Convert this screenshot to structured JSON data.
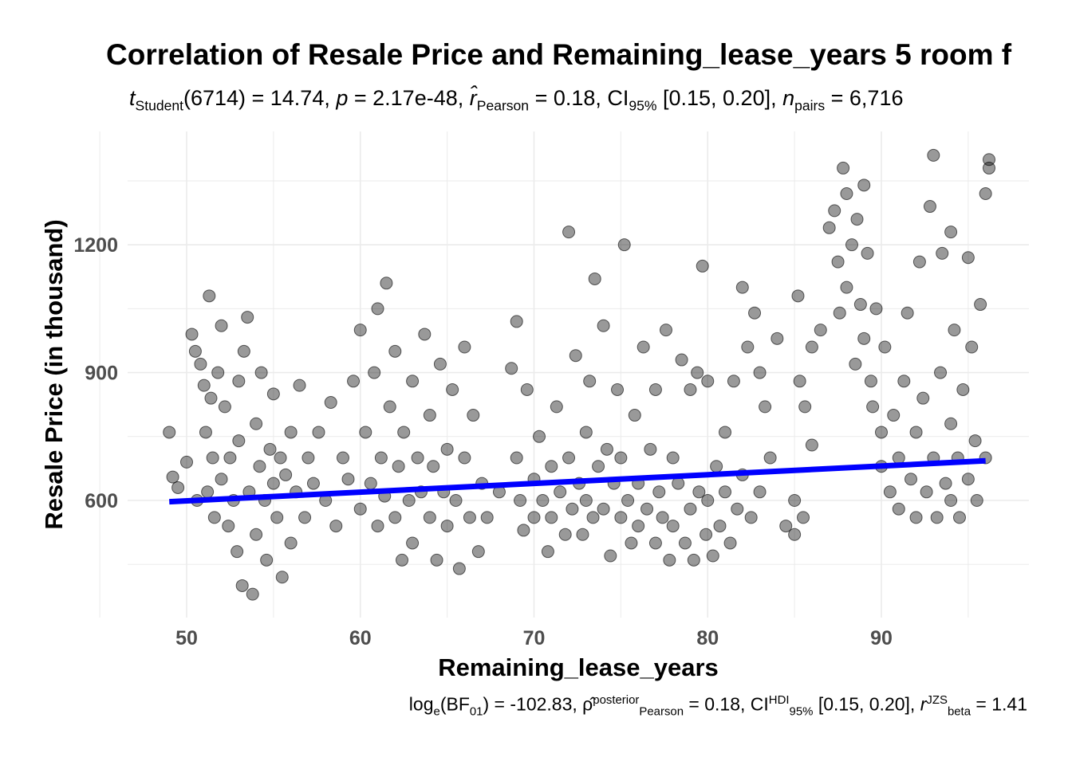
{
  "title": "Correlation of Resale Price and Remaining_lease_years 5 room f",
  "subtitle": {
    "t_label": "t",
    "t_sub": "Student",
    "df": "(6714) = 14.74, ",
    "p_label": "p",
    "p_val": " = 2.17e-48, ",
    "r_label": "r̂",
    "r_sub": "Pearson",
    "r_val": " = 0.18, CI",
    "ci_sub": "95%",
    "ci_val": " [0.15, 0.20], ",
    "n_label": "n",
    "n_sub": "pairs",
    "n_val": " = 6,716"
  },
  "caption": {
    "log": "log",
    "log_sub": "e",
    "bf": "(BF",
    "bf_sub": "01",
    "bf_val": ") = -102.83, ",
    "rho": "ρ̂",
    "rho_sup": "posterior",
    "rho_sub": "Pearson",
    "rho_val": " = 0.18, CI",
    "ci_sup": "HDI",
    "ci_sub": "95%",
    "ci_val": " [0.15, 0.20], ",
    "r": "r",
    "r_sup": "JZS",
    "r_sub": "beta",
    "r_val": " = 1.41"
  },
  "chart_data": {
    "type": "scatter",
    "xlabel": "Remaining_lease_years",
    "ylabel": "Resale Price (in thousand)",
    "xlim": [
      47.5,
      97
    ],
    "ylim": [
      350,
      1420
    ],
    "xticks": [
      50,
      60,
      70,
      80,
      90
    ],
    "yticks": [
      600,
      900,
      1200
    ],
    "grid": true,
    "point_color": "#000000",
    "line_color": "#0000ff",
    "regression": {
      "x": [
        49,
        96
      ],
      "y": [
        597,
        693
      ]
    },
    "points": [
      [
        49,
        760
      ],
      [
        49.2,
        655
      ],
      [
        49.5,
        630
      ],
      [
        50,
        690
      ],
      [
        50.3,
        990
      ],
      [
        50.5,
        950
      ],
      [
        50.6,
        600
      ],
      [
        50.8,
        920
      ],
      [
        51,
        870
      ],
      [
        51.1,
        760
      ],
      [
        51.2,
        620
      ],
      [
        51.3,
        1080
      ],
      [
        51.4,
        840
      ],
      [
        51.5,
        700
      ],
      [
        51.6,
        560
      ],
      [
        51.8,
        900
      ],
      [
        52,
        1010
      ],
      [
        52,
        650
      ],
      [
        52.2,
        820
      ],
      [
        52.4,
        540
      ],
      [
        52.5,
        700
      ],
      [
        52.7,
        600
      ],
      [
        52.9,
        480
      ],
      [
        53,
        740
      ],
      [
        53,
        880
      ],
      [
        53.2,
        400
      ],
      [
        53.3,
        950
      ],
      [
        53.5,
        1030
      ],
      [
        53.6,
        620
      ],
      [
        53.8,
        380
      ],
      [
        54,
        780
      ],
      [
        54,
        520
      ],
      [
        54.2,
        680
      ],
      [
        54.3,
        900
      ],
      [
        54.5,
        600
      ],
      [
        54.6,
        460
      ],
      [
        54.8,
        720
      ],
      [
        55,
        640
      ],
      [
        55,
        850
      ],
      [
        55.2,
        560
      ],
      [
        55.4,
        700
      ],
      [
        55.5,
        420
      ],
      [
        55.7,
        660
      ],
      [
        56,
        760
      ],
      [
        56,
        500
      ],
      [
        56.3,
        620
      ],
      [
        56.5,
        870
      ],
      [
        56.8,
        560
      ],
      [
        57,
        700
      ],
      [
        57.3,
        640
      ],
      [
        57.6,
        760
      ],
      [
        58,
        600
      ],
      [
        58.3,
        830
      ],
      [
        58.6,
        540
      ],
      [
        59,
        700
      ],
      [
        59.3,
        650
      ],
      [
        59.6,
        880
      ],
      [
        60,
        1000
      ],
      [
        60,
        580
      ],
      [
        60.3,
        760
      ],
      [
        60.6,
        640
      ],
      [
        60.8,
        900
      ],
      [
        61,
        1050
      ],
      [
        61,
        540
      ],
      [
        61.2,
        700
      ],
      [
        61.4,
        610
      ],
      [
        61.5,
        1110
      ],
      [
        61.7,
        820
      ],
      [
        62,
        560
      ],
      [
        62,
        950
      ],
      [
        62.2,
        680
      ],
      [
        62.4,
        460
      ],
      [
        62.5,
        760
      ],
      [
        62.8,
        600
      ],
      [
        63,
        880
      ],
      [
        63,
        500
      ],
      [
        63.3,
        700
      ],
      [
        63.5,
        620
      ],
      [
        63.7,
        990
      ],
      [
        64,
        560
      ],
      [
        64,
        800
      ],
      [
        64.2,
        680
      ],
      [
        64.4,
        460
      ],
      [
        64.6,
        920
      ],
      [
        64.8,
        620
      ],
      [
        65,
        720
      ],
      [
        65,
        540
      ],
      [
        65.3,
        860
      ],
      [
        65.5,
        600
      ],
      [
        65.7,
        440
      ],
      [
        66,
        700
      ],
      [
        66,
        960
      ],
      [
        66.3,
        560
      ],
      [
        66.5,
        800
      ],
      [
        66.8,
        480
      ],
      [
        67,
        640
      ],
      [
        67.3,
        560
      ],
      [
        68,
        620
      ],
      [
        68.7,
        910
      ],
      [
        69,
        1020
      ],
      [
        69,
        700
      ],
      [
        69.2,
        600
      ],
      [
        69.4,
        530
      ],
      [
        69.6,
        860
      ],
      [
        70,
        650
      ],
      [
        70,
        560
      ],
      [
        70.3,
        750
      ],
      [
        70.5,
        600
      ],
      [
        70.8,
        480
      ],
      [
        71,
        680
      ],
      [
        71,
        560
      ],
      [
        71.3,
        820
      ],
      [
        71.5,
        620
      ],
      [
        71.8,
        520
      ],
      [
        72,
        1230
      ],
      [
        72,
        700
      ],
      [
        72.2,
        580
      ],
      [
        72.4,
        940
      ],
      [
        72.6,
        640
      ],
      [
        72.8,
        520
      ],
      [
        73,
        760
      ],
      [
        73,
        600
      ],
      [
        73.2,
        880
      ],
      [
        73.4,
        560
      ],
      [
        73.5,
        1120
      ],
      [
        73.7,
        680
      ],
      [
        74,
        1010
      ],
      [
        74,
        580
      ],
      [
        74.2,
        720
      ],
      [
        74.4,
        470
      ],
      [
        74.6,
        640
      ],
      [
        74.8,
        860
      ],
      [
        75,
        560
      ],
      [
        75,
        700
      ],
      [
        75.2,
        1200
      ],
      [
        75.4,
        600
      ],
      [
        75.6,
        500
      ],
      [
        75.8,
        800
      ],
      [
        76,
        640
      ],
      [
        76,
        540
      ],
      [
        76.3,
        960
      ],
      [
        76.5,
        580
      ],
      [
        76.7,
        720
      ],
      [
        77,
        500
      ],
      [
        77,
        860
      ],
      [
        77.2,
        620
      ],
      [
        77.4,
        560
      ],
      [
        77.6,
        1000
      ],
      [
        77.8,
        460
      ],
      [
        78,
        700
      ],
      [
        78,
        540
      ],
      [
        78.3,
        640
      ],
      [
        78.5,
        930
      ],
      [
        78.7,
        500
      ],
      [
        79,
        580
      ],
      [
        79,
        860
      ],
      [
        79.2,
        460
      ],
      [
        79.4,
        900
      ],
      [
        79.5,
        620
      ],
      [
        79.7,
        1150
      ],
      [
        79.9,
        520
      ],
      [
        80,
        880
      ],
      [
        80,
        600
      ],
      [
        80.3,
        470
      ],
      [
        80.5,
        680
      ],
      [
        80.7,
        540
      ],
      [
        81,
        620
      ],
      [
        81,
        760
      ],
      [
        81.3,
        500
      ],
      [
        81.5,
        880
      ],
      [
        81.7,
        580
      ],
      [
        82,
        1100
      ],
      [
        82,
        660
      ],
      [
        82.3,
        960
      ],
      [
        82.5,
        560
      ],
      [
        82.7,
        1040
      ],
      [
        83,
        900
      ],
      [
        83,
        620
      ],
      [
        83.3,
        820
      ],
      [
        83.6,
        700
      ],
      [
        84,
        980
      ],
      [
        84.5,
        540
      ],
      [
        85,
        600
      ],
      [
        85,
        520
      ],
      [
        85.2,
        1080
      ],
      [
        85.3,
        880
      ],
      [
        85.5,
        560
      ],
      [
        85.6,
        820
      ],
      [
        86,
        960
      ],
      [
        86,
        730
      ],
      [
        86.5,
        1000
      ],
      [
        87,
        1240
      ],
      [
        87.3,
        1280
      ],
      [
        87.5,
        1160
      ],
      [
        87.6,
        1040
      ],
      [
        87.8,
        1380
      ],
      [
        88,
        1320
      ],
      [
        88,
        1100
      ],
      [
        88.3,
        1200
      ],
      [
        88.5,
        920
      ],
      [
        88.6,
        1260
      ],
      [
        88.8,
        1060
      ],
      [
        89,
        1340
      ],
      [
        89,
        980
      ],
      [
        89.2,
        1180
      ],
      [
        89.4,
        880
      ],
      [
        89.5,
        820
      ],
      [
        89.7,
        1050
      ],
      [
        90,
        760
      ],
      [
        90,
        680
      ],
      [
        90.2,
        960
      ],
      [
        90.5,
        620
      ],
      [
        90.7,
        800
      ],
      [
        91,
        700
      ],
      [
        91,
        580
      ],
      [
        91.3,
        880
      ],
      [
        91.5,
        1040
      ],
      [
        91.7,
        650
      ],
      [
        92,
        760
      ],
      [
        92,
        560
      ],
      [
        92.2,
        1160
      ],
      [
        92.4,
        840
      ],
      [
        92.6,
        620
      ],
      [
        92.8,
        1290
      ],
      [
        93,
        1410
      ],
      [
        93,
        700
      ],
      [
        93.2,
        560
      ],
      [
        93.4,
        900
      ],
      [
        93.5,
        1180
      ],
      [
        93.7,
        640
      ],
      [
        94,
        780
      ],
      [
        94,
        1230
      ],
      [
        94,
        600
      ],
      [
        94.2,
        1000
      ],
      [
        94.4,
        700
      ],
      [
        94.5,
        560
      ],
      [
        94.7,
        860
      ],
      [
        95,
        1170
      ],
      [
        95,
        650
      ],
      [
        95.2,
        960
      ],
      [
        95.4,
        740
      ],
      [
        95.5,
        600
      ],
      [
        95.7,
        1060
      ],
      [
        96,
        1320
      ],
      [
        96.2,
        1400
      ],
      [
        96.2,
        1380
      ],
      [
        96,
        700
      ]
    ]
  }
}
